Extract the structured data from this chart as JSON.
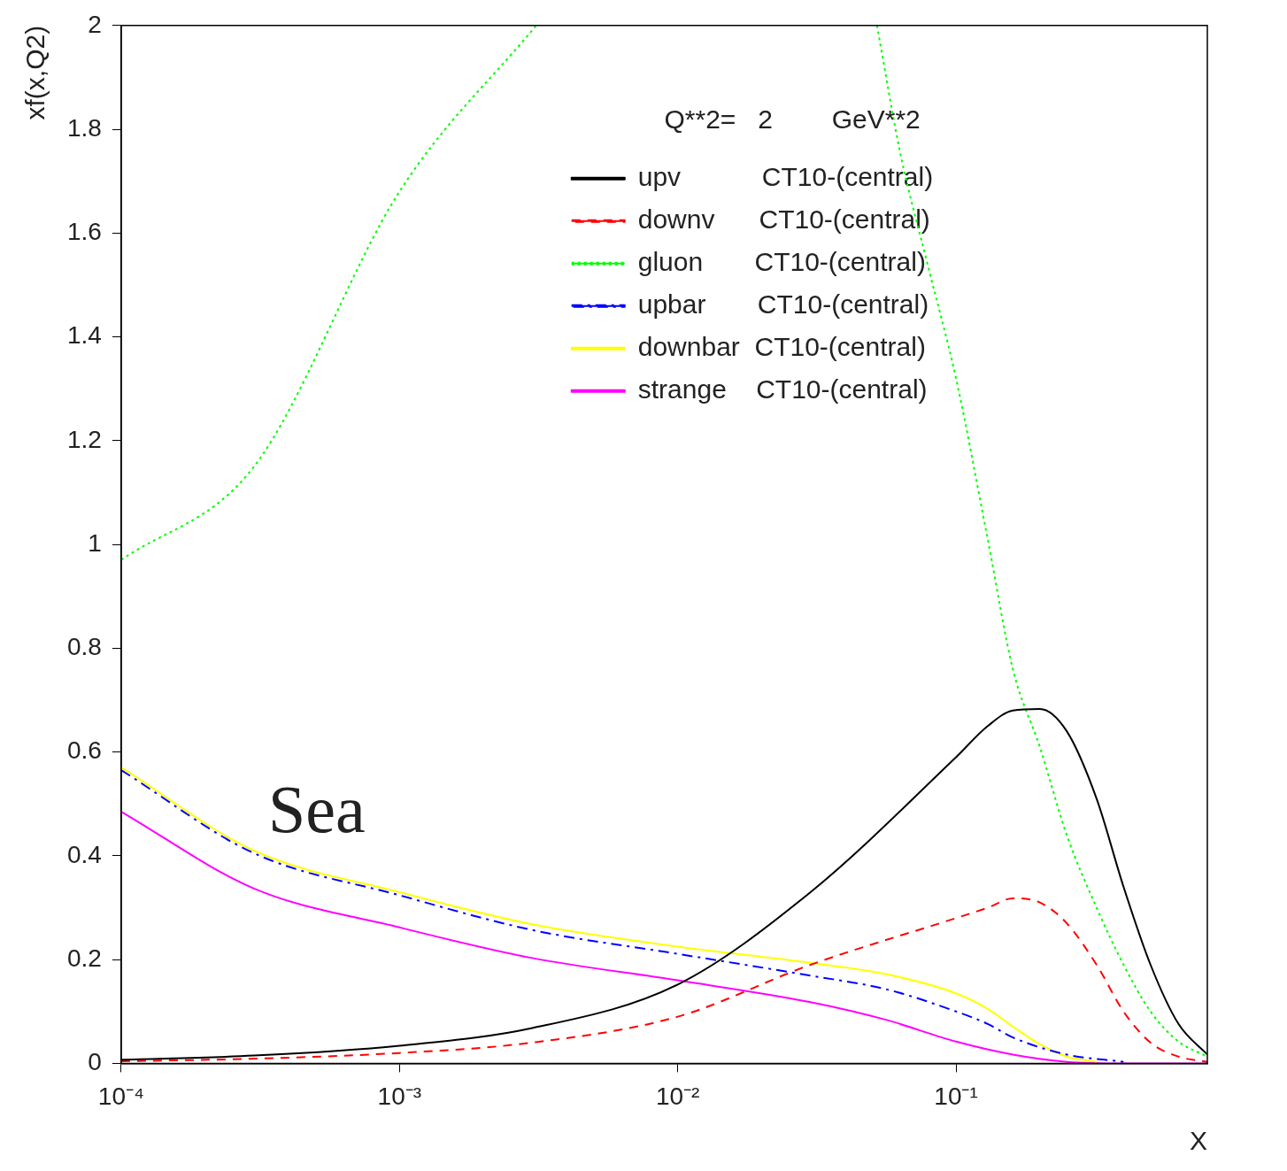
{
  "chart_data": {
    "type": "line",
    "xlabel": "X",
    "ylabel": "xf(x,Q2)",
    "annotations": [
      "Q**2=   2        GeV**2",
      "Sea"
    ],
    "log": "x",
    "grid": false,
    "legend": "top right",
    "marker": "none",
    "xlim": [
      0.0001,
      0.8
    ],
    "xticks": [
      {
        "value": 0.0001,
        "label": "10⁻⁴"
      },
      {
        "value": 0.001,
        "label": "10⁻³"
      },
      {
        "value": 0.01,
        "label": "10⁻²"
      },
      {
        "value": 0.1,
        "label": "10⁻¹"
      }
    ],
    "ylim": [
      0,
      2
    ],
    "yticks": [
      0,
      0.2,
      0.4,
      0.6,
      0.8,
      1,
      1.2,
      1.4,
      1.6,
      1.8,
      2
    ],
    "series": [
      {
        "name": "upv           CT10-(central)",
        "color": "#000000",
        "line_style": "solid",
        "x": [
          0.0001,
          0.0003,
          0.001,
          0.003,
          0.01,
          0.03,
          0.1,
          0.13,
          0.16,
          0.2,
          0.25,
          0.32,
          0.4,
          0.5,
          0.63,
          0.8
        ],
        "values": [
          0.007,
          0.015,
          0.034,
          0.068,
          0.152,
          0.33,
          0.59,
          0.65,
          0.68,
          0.683,
          0.64,
          0.51,
          0.34,
          0.19,
          0.076,
          0.017
        ]
      },
      {
        "name": "downv      CT10-(central)",
        "color": "#ff0000",
        "line_style": "dashed",
        "x": [
          0.0001,
          0.0003,
          0.001,
          0.003,
          0.01,
          0.03,
          0.1,
          0.13,
          0.16,
          0.2,
          0.25,
          0.32,
          0.4,
          0.5,
          0.63,
          0.8
        ],
        "values": [
          0.004,
          0.009,
          0.02,
          0.04,
          0.09,
          0.19,
          0.28,
          0.3,
          0.318,
          0.31,
          0.27,
          0.19,
          0.1,
          0.04,
          0.013,
          0.003
        ]
      },
      {
        "name": "gluon       CT10-(central)",
        "color": "#00ff00",
        "line_style": "dotted",
        "x": [
          0.0001,
          0.0003,
          0.001,
          0.0031,
          0.01,
          0.052,
          0.063,
          0.079,
          0.1,
          0.13,
          0.16,
          0.2,
          0.25,
          0.32,
          0.4,
          0.5,
          0.63,
          0.8
        ],
        "values": [
          0.97,
          1.15,
          1.68,
          2,
          null,
          2,
          1.755,
          1.54,
          1.32,
          1.01,
          0.76,
          0.61,
          0.44,
          0.3,
          0.19,
          0.1,
          0.042,
          0.013
        ]
      },
      {
        "name": "upbar       CT10-(central)",
        "color": "#0000ff",
        "line_style": "dashdot",
        "x": [
          0.0001,
          0.0003,
          0.001,
          0.003,
          0.01,
          0.03,
          0.056,
          0.1,
          0.13,
          0.16,
          0.25,
          0.4
        ],
        "values": [
          0.565,
          0.405,
          0.324,
          0.257,
          0.211,
          0.169,
          0.143,
          0.1,
          0.076,
          0.05,
          0.017,
          0.003
        ]
      },
      {
        "name": "downbar  CT10-(central)",
        "color": "#ffff00",
        "line_style": "solid",
        "x": [
          0.0001,
          0.0003,
          0.001,
          0.003,
          0.01,
          0.03,
          0.056,
          0.1,
          0.13,
          0.16,
          0.2,
          0.25,
          0.32
        ],
        "values": [
          0.57,
          0.41,
          0.33,
          0.268,
          0.225,
          0.194,
          0.172,
          0.135,
          0.105,
          0.071,
          0.037,
          0.013,
          0.003
        ]
      },
      {
        "name": "strange    CT10-(central)",
        "color": "#ff00ff",
        "line_style": "solid",
        "x": [
          0.0001,
          0.0003,
          0.001,
          0.003,
          0.01,
          0.03,
          0.056,
          0.1,
          0.16,
          0.25,
          0.4,
          0.8
        ],
        "values": [
          0.485,
          0.337,
          0.262,
          0.203,
          0.16,
          0.118,
          0.084,
          0.042,
          0.017,
          0.003,
          0,
          0
        ]
      }
    ]
  }
}
